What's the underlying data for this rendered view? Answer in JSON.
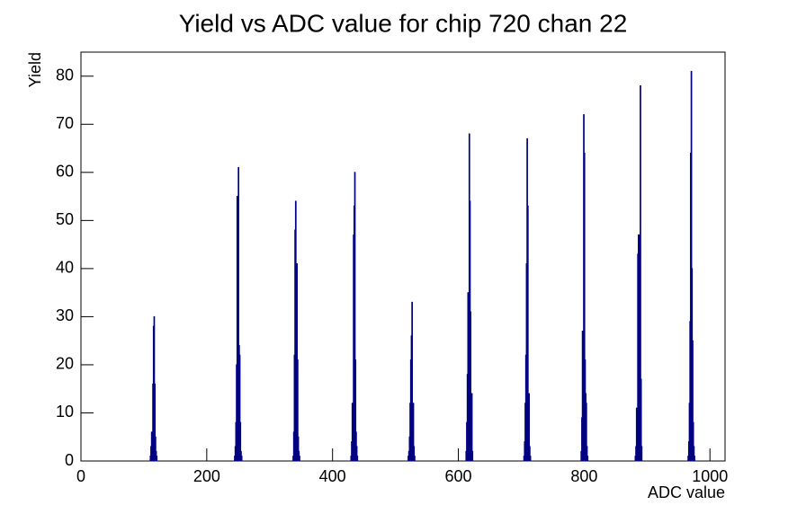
{
  "chart_data": {
    "type": "histogram",
    "title": "Yield vs ADC value for chip 720 chan 22",
    "x_label": "ADC value",
    "y_label": "Yield",
    "bins": [
      0,
      110,
      111,
      112,
      113,
      114,
      115,
      116,
      117,
      118,
      119,
      120,
      121,
      244,
      245,
      246,
      247,
      248,
      249,
      250,
      251,
      252,
      253,
      254,
      255,
      256,
      337,
      338,
      339,
      340,
      341,
      342,
      343,
      344,
      345,
      346,
      347,
      348,
      429,
      430,
      431,
      432,
      433,
      434,
      435,
      436,
      437,
      438,
      439,
      440,
      520,
      521,
      522,
      523,
      524,
      525,
      526,
      527,
      528,
      529,
      530,
      531,
      612,
      613,
      614,
      615,
      616,
      617,
      618,
      619,
      620,
      621,
      622,
      623,
      704,
      705,
      706,
      707,
      708,
      709,
      710,
      711,
      712,
      713,
      714,
      715,
      795,
      796,
      797,
      798,
      799,
      800,
      801,
      802,
      803,
      804,
      805,
      806,
      881,
      882,
      883,
      884,
      885,
      886,
      887,
      888,
      889,
      890,
      891,
      892,
      965,
      966,
      967,
      968,
      969,
      970,
      971,
      972,
      973,
      974,
      975,
      976,
      1024
    ],
    "values": [
      0,
      1,
      3,
      6,
      5,
      16,
      28,
      30,
      16,
      5,
      2,
      1,
      0,
      1,
      3,
      8,
      20,
      55,
      53,
      61,
      24,
      22,
      8,
      2,
      1,
      0,
      1,
      6,
      22,
      48,
      54,
      22,
      41,
      21,
      5,
      2,
      1,
      0,
      1,
      4,
      12,
      11,
      47,
      53,
      60,
      21,
      6,
      3,
      1,
      0,
      1,
      2,
      5,
      12,
      21,
      26,
      33,
      8,
      12,
      3,
      1,
      0,
      2,
      8,
      18,
      35,
      29,
      68,
      54,
      31,
      8,
      14,
      2,
      0,
      1,
      4,
      12,
      22,
      41,
      67,
      53,
      10,
      14,
      3,
      1,
      0,
      2,
      9,
      27,
      18,
      72,
      64,
      21,
      14,
      12,
      3,
      1,
      0,
      1,
      3,
      11,
      10,
      43,
      47,
      30,
      47,
      78,
      17,
      3,
      0,
      1,
      4,
      12,
      29,
      64,
      81,
      40,
      25,
      8,
      3,
      1,
      0
    ],
    "color": "#000080",
    "xlim": [
      0,
      1024
    ],
    "ylim": [
      0,
      85
    ],
    "xticks": [
      0,
      200,
      400,
      600,
      800,
      1000
    ],
    "yticks": [
      0,
      10,
      20,
      30,
      40,
      50,
      60,
      70,
      80
    ]
  }
}
